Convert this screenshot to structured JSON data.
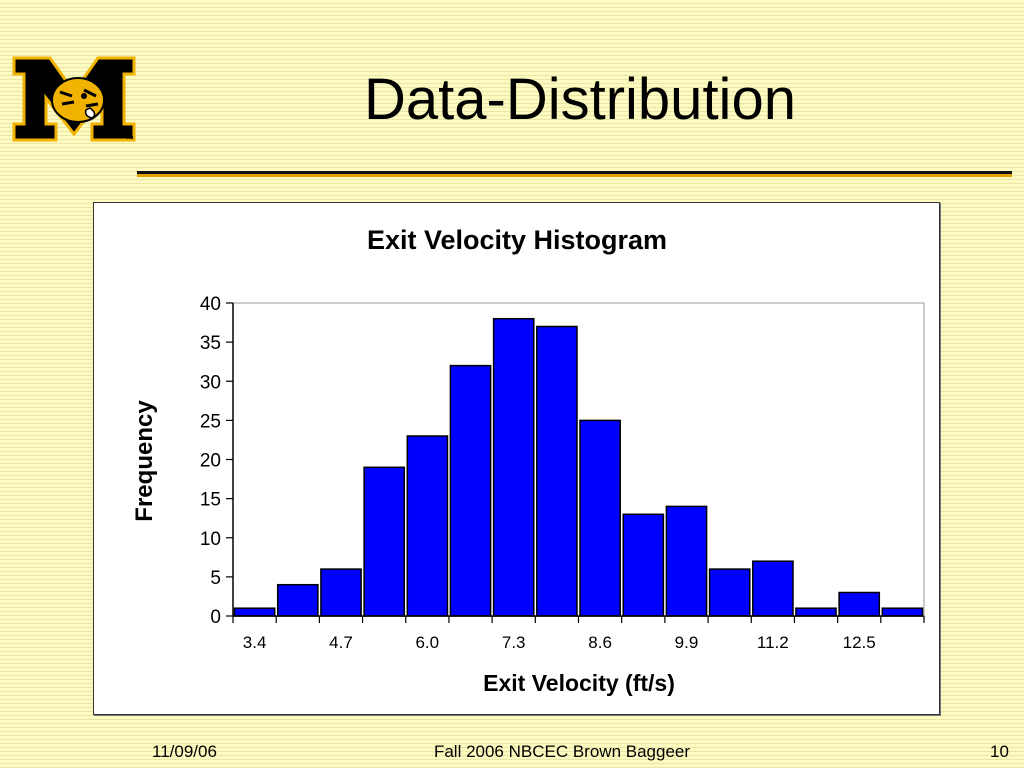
{
  "slide": {
    "title": "Data-Distribution",
    "logo": {
      "letter": "M",
      "mark": "™",
      "colors": {
        "gold": "#f2b300",
        "black": "#000000"
      }
    }
  },
  "footer": {
    "date": "11/09/06",
    "center": "Fall 2006 NBCEC Brown Baggeer",
    "page": "10"
  },
  "chart_data": {
    "type": "bar",
    "title": "Exit Velocity Histogram",
    "xlabel": "Exit Velocity (ft/s)",
    "ylabel": "Frequency",
    "ylim": [
      0,
      40
    ],
    "yticks": [
      0,
      5,
      10,
      15,
      20,
      25,
      30,
      35,
      40
    ],
    "categories": [
      "3.4",
      "",
      "4.7",
      "",
      "6.0",
      "",
      "7.3",
      "",
      "8.6",
      "",
      "9.9",
      "",
      "11.2",
      "",
      "12.5",
      ""
    ],
    "values": [
      1,
      4,
      6,
      19,
      23,
      32,
      38,
      37,
      25,
      13,
      14,
      6,
      7,
      1,
      3,
      1
    ],
    "bar_color": "#0000ff",
    "grid": false,
    "legend": "none"
  }
}
